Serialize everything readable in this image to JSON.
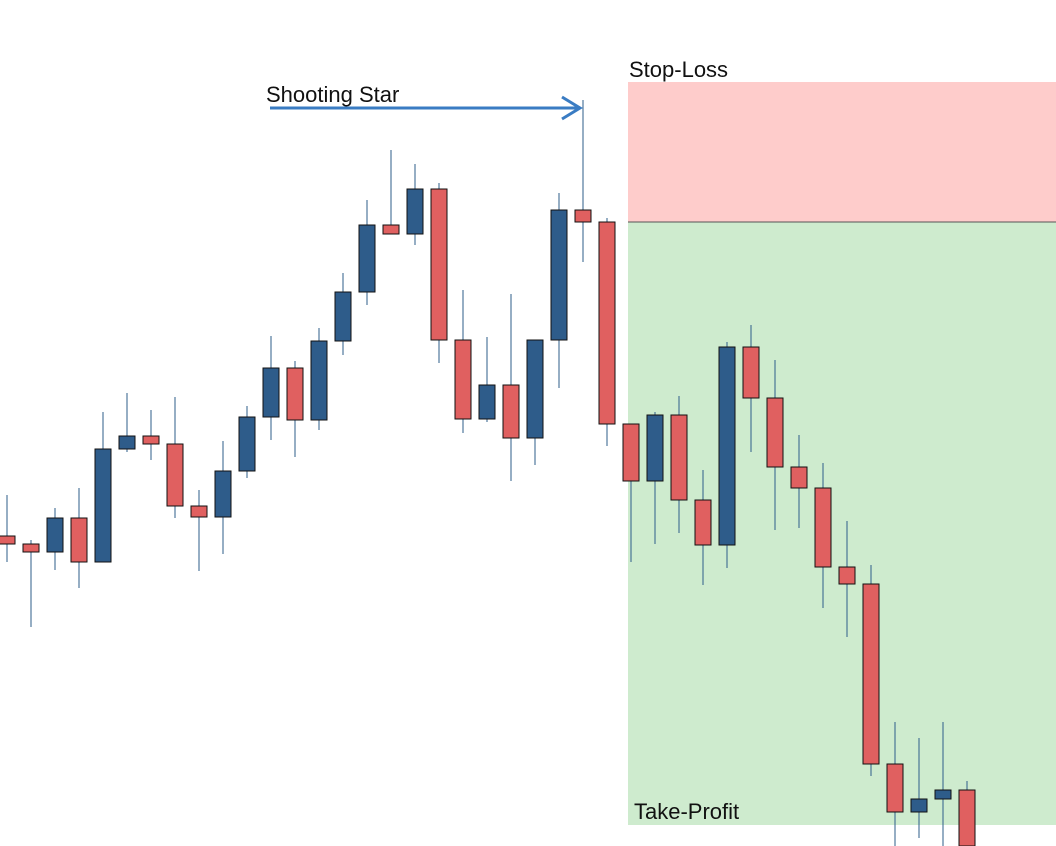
{
  "chart_data": {
    "type": "candlestick",
    "categories": [
      null,
      null,
      null,
      null,
      null,
      null,
      null,
      null,
      null,
      null,
      null,
      null,
      null,
      null,
      null,
      null,
      null,
      null,
      null,
      null,
      null,
      null,
      null,
      null,
      null,
      null,
      null,
      null,
      null,
      null,
      null,
      null,
      null,
      null,
      null,
      null,
      null,
      null,
      null,
      null,
      null
    ],
    "open": [
      310,
      302,
      294,
      328,
      284,
      397,
      410,
      402,
      340,
      329,
      375,
      429,
      478,
      426,
      505,
      554,
      621,
      612,
      657,
      506,
      427,
      461,
      408,
      506,
      636,
      624,
      422,
      365,
      431,
      346,
      301,
      499,
      448,
      379,
      358,
      279,
      262,
      82,
      34,
      47,
      56
    ],
    "close": [
      302,
      294,
      328,
      284,
      397,
      410,
      402,
      340,
      329,
      375,
      429,
      478,
      426,
      505,
      554,
      621,
      612,
      657,
      506,
      427,
      461,
      408,
      506,
      636,
      624,
      422,
      365,
      431,
      346,
      301,
      499,
      448,
      379,
      358,
      279,
      262,
      82,
      34,
      47,
      56,
      0
    ],
    "high": [
      351,
      306,
      338,
      358,
      434,
      453,
      436,
      449,
      356,
      405,
      440,
      510,
      485,
      518,
      573,
      646,
      696,
      682,
      663,
      556,
      509,
      552,
      506,
      653,
      746,
      628,
      422,
      434,
      450,
      376,
      504,
      521,
      486,
      411,
      383,
      325,
      281,
      124,
      108,
      124,
      65
    ],
    "low": [
      284,
      219,
      276,
      258,
      284,
      394,
      386,
      328,
      275,
      292,
      368,
      406,
      389,
      416,
      491,
      541,
      612,
      601,
      483,
      413,
      424,
      365,
      381,
      458,
      584,
      400,
      284,
      302,
      313,
      261,
      278,
      394,
      316,
      318,
      238,
      209,
      70,
      0,
      8,
      0,
      0
    ],
    "up_color": "#2e5c8a",
    "down_color": "#e06060",
    "wick_color": "#2e5c8a",
    "ylim": [
      0,
      846
    ],
    "annotation": "Shooting Star",
    "zones": [
      {
        "label": "Stop-Loss",
        "top": 764,
        "bottom": 624,
        "color": "#fecccb"
      },
      {
        "label": "Take-Profit",
        "top": 624,
        "bottom": 21,
        "color": "#ceebce"
      }
    ]
  }
}
